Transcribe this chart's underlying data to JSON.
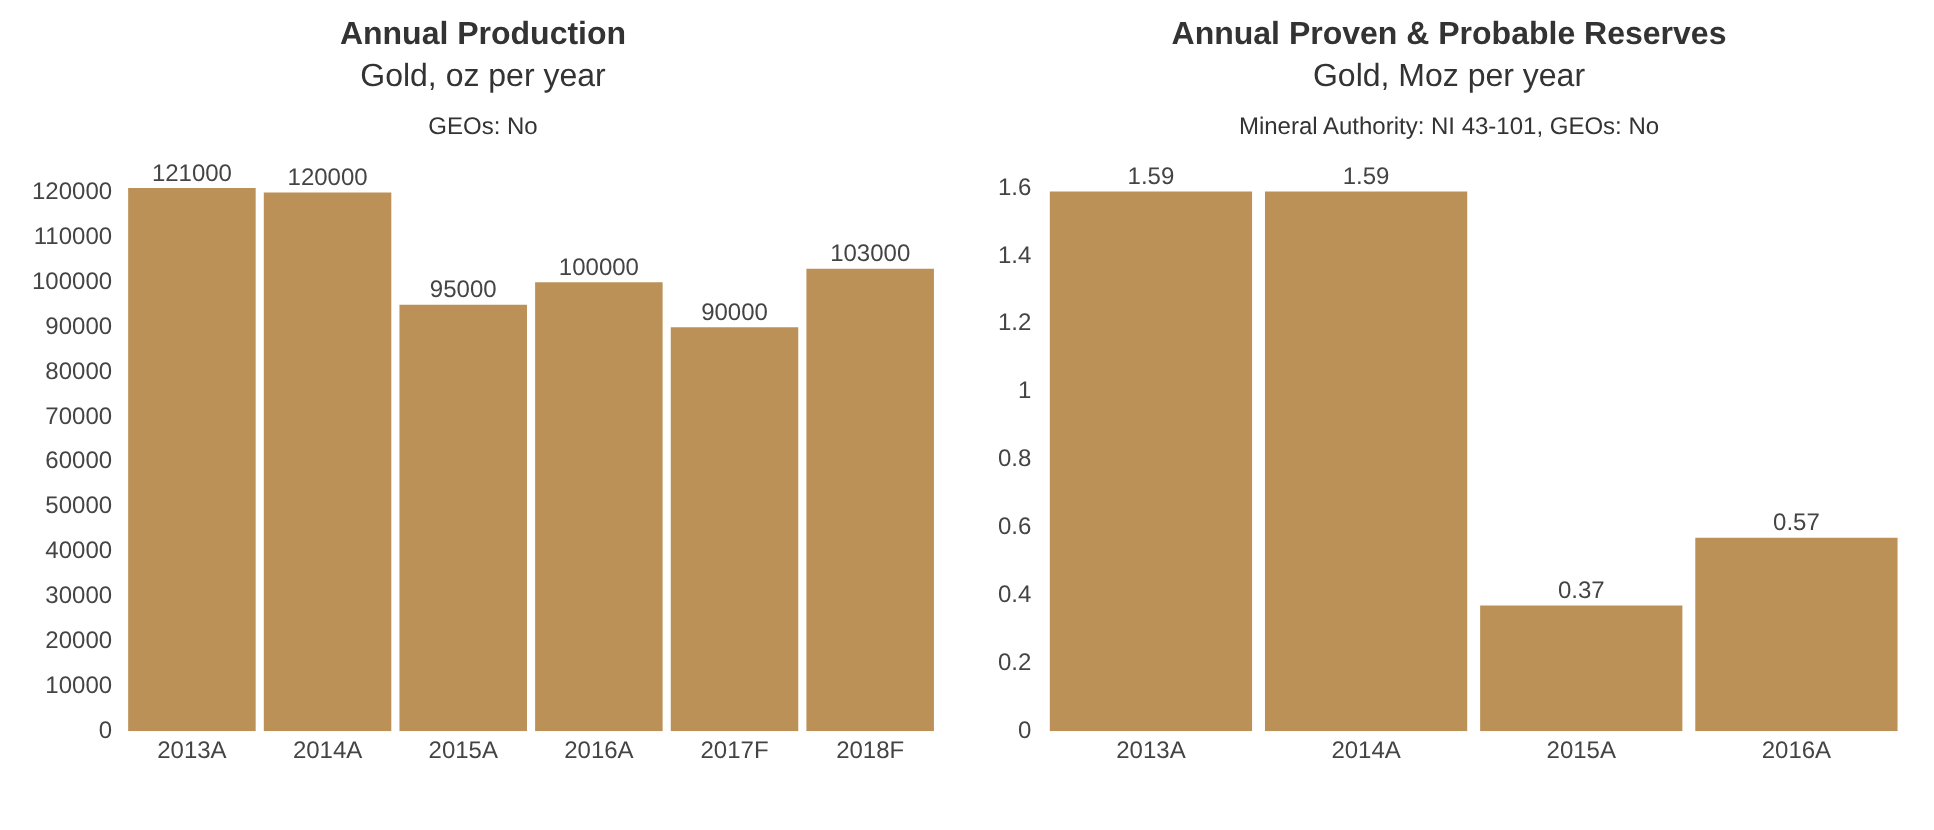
{
  "chart_data": [
    {
      "type": "bar",
      "title": "Annual Production",
      "subtitle": "Gold, oz per year",
      "annotations": [
        "GEOs: No"
      ],
      "categories": [
        "2013A",
        "2014A",
        "2015A",
        "2016A",
        "2017F",
        "2018F"
      ],
      "values": [
        121000,
        120000,
        95000,
        100000,
        90000,
        103000
      ],
      "color": "#bb9157",
      "ylim": [
        0,
        121000
      ],
      "yticks": [
        0,
        10000,
        20000,
        30000,
        40000,
        50000,
        60000,
        70000,
        80000,
        90000,
        100000,
        110000,
        120000
      ],
      "data_labels": true,
      "grid": false,
      "legend": false
    },
    {
      "type": "bar",
      "title": "Annual Proven & Probable Reserves",
      "subtitle": "Gold, Moz per year",
      "annotations": [
        "Mineral Authority: NI 43-101, GEOs: No"
      ],
      "categories": [
        "2013A",
        "2014A",
        "2015A",
        "2016A"
      ],
      "values": [
        1.59,
        1.59,
        0.37,
        0.57
      ],
      "color": "#bb9157",
      "ylim": [
        0,
        1.6
      ],
      "yticks": [
        0,
        0.2,
        0.4,
        0.6,
        0.8,
        1,
        1.2,
        1.4,
        1.6
      ],
      "data_labels": true,
      "grid": false,
      "legend": false
    }
  ]
}
